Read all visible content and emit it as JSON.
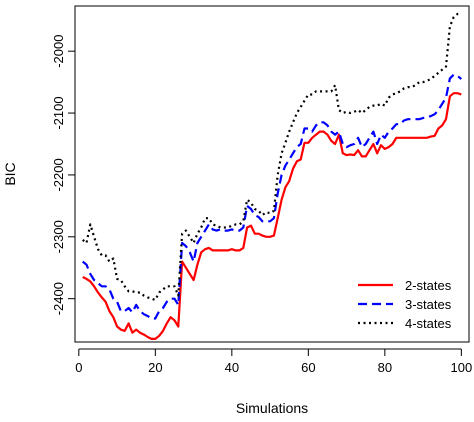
{
  "chart_data": {
    "type": "line",
    "xlabel": "Simulations",
    "ylabel": "BIC",
    "xlim": [
      -1,
      102
    ],
    "ylim": [
      -2470,
      -1927
    ],
    "xticks": [
      0,
      20,
      40,
      60,
      80,
      100
    ],
    "yticks": [
      -2400,
      -2300,
      -2200,
      -2100,
      -2000
    ],
    "grid": false,
    "legend_position": "bottom-right",
    "series": [
      {
        "name": "2-states",
        "color": "#ff0000",
        "dash": "solid",
        "x": [
          1,
          2,
          3,
          4,
          5,
          6,
          7,
          8,
          9,
          10,
          11,
          12,
          13,
          14,
          15,
          16,
          17,
          18,
          19,
          20,
          21,
          22,
          23,
          24,
          25,
          26,
          27,
          28,
          29,
          30,
          31,
          32,
          33,
          34,
          35,
          36,
          37,
          38,
          39,
          40,
          41,
          42,
          43,
          44,
          45,
          46,
          47,
          48,
          49,
          50,
          51,
          52,
          53,
          54,
          55,
          56,
          57,
          58,
          59,
          60,
          61,
          62,
          63,
          64,
          65,
          66,
          67,
          68,
          69,
          70,
          71,
          72,
          73,
          74,
          75,
          76,
          77,
          78,
          79,
          80,
          81,
          82,
          83,
          84,
          85,
          86,
          87,
          88,
          89,
          90,
          91,
          92,
          93,
          94,
          95,
          96,
          97,
          98,
          99,
          100
        ],
        "y": [
          -2365,
          -2368,
          -2372,
          -2380,
          -2390,
          -2398,
          -2405,
          -2420,
          -2430,
          -2445,
          -2450,
          -2452,
          -2440,
          -2455,
          -2450,
          -2455,
          -2458,
          -2462,
          -2465,
          -2465,
          -2460,
          -2452,
          -2440,
          -2430,
          -2435,
          -2445,
          -2340,
          -2350,
          -2360,
          -2370,
          -2345,
          -2325,
          -2320,
          -2318,
          -2322,
          -2322,
          -2322,
          -2322,
          -2322,
          -2320,
          -2322,
          -2322,
          -2318,
          -2285,
          -2282,
          -2295,
          -2295,
          -2298,
          -2300,
          -2300,
          -2298,
          -2270,
          -2240,
          -2220,
          -2210,
          -2190,
          -2178,
          -2175,
          -2148,
          -2148,
          -2140,
          -2135,
          -2130,
          -2130,
          -2135,
          -2145,
          -2150,
          -2135,
          -2165,
          -2168,
          -2167,
          -2168,
          -2160,
          -2170,
          -2170,
          -2160,
          -2150,
          -2165,
          -2152,
          -2158,
          -2155,
          -2150,
          -2140,
          -2140,
          -2140,
          -2140,
          -2140,
          -2140,
          -2140,
          -2140,
          -2140,
          -2138,
          -2137,
          -2125,
          -2120,
          -2110,
          -2073,
          -2068,
          -2068,
          -2070
        ]
      },
      {
        "name": "3-states",
        "color": "#0000ff",
        "dash": "dashed",
        "x": [
          1,
          2,
          3,
          4,
          5,
          6,
          7,
          8,
          9,
          10,
          11,
          12,
          13,
          14,
          15,
          16,
          17,
          18,
          19,
          20,
          21,
          22,
          23,
          24,
          25,
          26,
          27,
          28,
          29,
          30,
          31,
          32,
          33,
          34,
          35,
          36,
          37,
          38,
          39,
          40,
          41,
          42,
          43,
          44,
          45,
          46,
          47,
          48,
          49,
          50,
          51,
          52,
          53,
          54,
          55,
          56,
          57,
          58,
          59,
          60,
          61,
          62,
          63,
          64,
          65,
          66,
          67,
          68,
          69,
          70,
          71,
          72,
          73,
          74,
          75,
          76,
          77,
          78,
          79,
          80,
          81,
          82,
          83,
          84,
          85,
          86,
          87,
          88,
          89,
          90,
          91,
          92,
          93,
          94,
          95,
          96,
          97,
          98,
          99,
          100
        ],
        "y": [
          -2340,
          -2345,
          -2360,
          -2370,
          -2375,
          -2380,
          -2380,
          -2385,
          -2400,
          -2405,
          -2420,
          -2420,
          -2415,
          -2422,
          -2410,
          -2420,
          -2425,
          -2428,
          -2432,
          -2432,
          -2420,
          -2415,
          -2405,
          -2400,
          -2400,
          -2410,
          -2310,
          -2315,
          -2325,
          -2340,
          -2310,
          -2300,
          -2290,
          -2280,
          -2288,
          -2290,
          -2288,
          -2290,
          -2290,
          -2288,
          -2290,
          -2290,
          -2285,
          -2250,
          -2255,
          -2265,
          -2268,
          -2275,
          -2275,
          -2275,
          -2270,
          -2230,
          -2200,
          -2185,
          -2175,
          -2165,
          -2155,
          -2150,
          -2125,
          -2125,
          -2130,
          -2120,
          -2115,
          -2115,
          -2120,
          -2130,
          -2135,
          -2130,
          -2150,
          -2155,
          -2152,
          -2150,
          -2140,
          -2155,
          -2150,
          -2140,
          -2130,
          -2150,
          -2135,
          -2140,
          -2130,
          -2125,
          -2118,
          -2118,
          -2112,
          -2110,
          -2110,
          -2110,
          -2110,
          -2108,
          -2107,
          -2105,
          -2102,
          -2095,
          -2085,
          -2075,
          -2044,
          -2038,
          -2040,
          -2045
        ]
      },
      {
        "name": "4-states",
        "color": "#000000",
        "dash": "dotted",
        "x": [
          1,
          2,
          3,
          4,
          5,
          6,
          7,
          8,
          9,
          10,
          11,
          12,
          13,
          14,
          15,
          16,
          17,
          18,
          19,
          20,
          21,
          22,
          23,
          24,
          25,
          26,
          27,
          28,
          29,
          30,
          31,
          32,
          33,
          34,
          35,
          36,
          37,
          38,
          39,
          40,
          41,
          42,
          43,
          44,
          45,
          46,
          47,
          48,
          49,
          50,
          51,
          52,
          53,
          54,
          55,
          56,
          57,
          58,
          59,
          60,
          61,
          62,
          63,
          64,
          65,
          66,
          67,
          68,
          69,
          70,
          71,
          72,
          73,
          74,
          75,
          76,
          77,
          78,
          79,
          80,
          81,
          82,
          83,
          84,
          85,
          86,
          87,
          88,
          89,
          90,
          91,
          92,
          93,
          94,
          95,
          96,
          97,
          98,
          99,
          100
        ],
        "y": [
          -2305,
          -2310,
          -2280,
          -2300,
          -2320,
          -2330,
          -2330,
          -2340,
          -2335,
          -2368,
          -2370,
          -2380,
          -2388,
          -2388,
          -2390,
          -2390,
          -2395,
          -2398,
          -2400,
          -2402,
          -2390,
          -2385,
          -2380,
          -2380,
          -2380,
          -2395,
          -2295,
          -2290,
          -2300,
          -2310,
          -2295,
          -2285,
          -2270,
          -2270,
          -2280,
          -2282,
          -2285,
          -2285,
          -2285,
          -2282,
          -2280,
          -2280,
          -2275,
          -2240,
          -2245,
          -2255,
          -2258,
          -2265,
          -2260,
          -2262,
          -2258,
          -2200,
          -2165,
          -2148,
          -2130,
          -2115,
          -2100,
          -2090,
          -2080,
          -2070,
          -2070,
          -2065,
          -2065,
          -2065,
          -2065,
          -2065,
          -2055,
          -2095,
          -2100,
          -2098,
          -2100,
          -2098,
          -2095,
          -2100,
          -2095,
          -2090,
          -2088,
          -2088,
          -2085,
          -2088,
          -2075,
          -2070,
          -2068,
          -2065,
          -2060,
          -2058,
          -2058,
          -2055,
          -2050,
          -2050,
          -2048,
          -2045,
          -2040,
          -2035,
          -2030,
          -2025,
          -1960,
          -1945,
          -1940,
          -1940
        ]
      }
    ]
  }
}
